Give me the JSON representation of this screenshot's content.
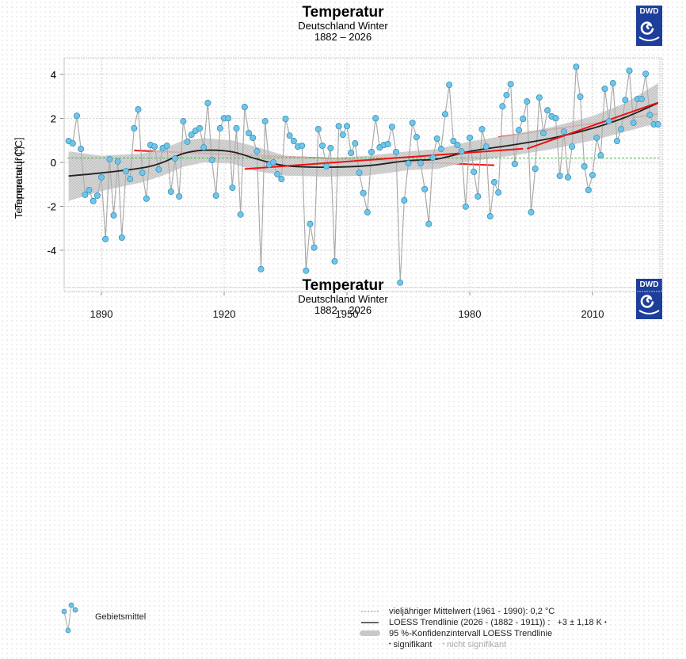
{
  "logo": {
    "text": "DWD"
  },
  "legend": {
    "gebietsmittel": "Gebietsmittel",
    "mean": "vieljähriger Mittelwert (1961 - 1990): 0,2 °C",
    "loess": "LOESS Trendlinie (2026 - (1882 - 1911)) :",
    "loess_value": "+3 ± 1,18 K",
    "ci": "95 %-Konfidenzintervall LOESS Trendlinie",
    "sig": "signifikant",
    "nonsig": "nicht signifikant"
  },
  "colors": {
    "point_fill": "#6ec6ea",
    "point_stroke": "#3a8fb5",
    "series_line": "#aaaaaa",
    "loess": "#222222",
    "band": "#c8c8c8",
    "trend": "#ee1111",
    "mean": "#44bb44",
    "logo": "#1d3e9a"
  },
  "chart_data": [
    {
      "type": "line",
      "title": "Temperatur",
      "subtitle": "Deutschland Winter",
      "period": "1882 – 2026",
      "xlabel": "",
      "ylabel": "Temperatur [°C]",
      "xlim": [
        1880,
        2028
      ],
      "ylim": [
        -5,
        4.8
      ],
      "yticks": [
        -4,
        -2,
        0,
        2,
        4
      ],
      "xticks": [],
      "grid": true,
      "mean_1961_1990": 0.2,
      "series_ref": "gebietsmittel",
      "trend_segments": [
        {
          "x": [
            1898,
            1986
          ],
          "y": [
            0.54,
            -0.13
          ]
        },
        {
          "x": [
            1987,
            2026
          ],
          "y": [
            1.15,
            2.2
          ]
        }
      ]
    },
    {
      "type": "line",
      "title": "Temperatur",
      "subtitle": "Deutschland Winter",
      "period": "1882 – 2026",
      "xlabel": "",
      "ylabel": "Temperatur [°C]",
      "xlim": [
        1880,
        2028
      ],
      "ylim": [
        -5.8,
        4.8
      ],
      "yticks": [
        -4,
        -2,
        0,
        2,
        4
      ],
      "xticks": [
        1890,
        1920,
        1950,
        1980,
        2010
      ],
      "grid": true,
      "mean_1961_1990": 0.2,
      "series_ref": "gebietsmittel",
      "trend_segments": [
        {
          "x": [
            1925,
            1993
          ],
          "y": [
            -0.3,
            0.62
          ]
        },
        {
          "x": [
            1994,
            2026
          ],
          "y": [
            0.62,
            2.72
          ]
        }
      ]
    }
  ],
  "gebietsmittel": {
    "start_year": 1882,
    "values": [
      0.97,
      0.86,
      2.12,
      0.61,
      -1.47,
      -1.26,
      -1.76,
      -1.51,
      -0.68,
      -3.49,
      0.14,
      -2.41,
      0.04,
      -3.42,
      -0.4,
      -0.76,
      1.55,
      2.41,
      -0.47,
      -1.65,
      0.79,
      0.72,
      -0.32,
      0.65,
      0.76,
      -1.33,
      0.18,
      -1.55,
      1.87,
      0.94,
      1.26,
      1.44,
      1.55,
      0.68,
      2.7,
      0.11,
      -1.51,
      1.55,
      2.01,
      2.01,
      -1.15,
      1.55,
      -2.37,
      2.52,
      1.33,
      1.12,
      0.5,
      -4.86,
      1.87,
      -0.11,
      0.0,
      -0.54,
      -0.76,
      1.98,
      1.22,
      0.97,
      0.72,
      0.76,
      -4.93,
      -2.8,
      -3.88,
      1.51,
      0.76,
      -0.18,
      0.65,
      -4.5,
      1.65,
      1.26,
      1.65,
      0.43,
      0.86,
      -0.47,
      -1.4,
      -2.27,
      0.47,
      2.01,
      0.68,
      0.79,
      0.83,
      1.62,
      0.47,
      -5.47,
      -1.73,
      -0.04,
      1.8,
      1.15,
      -0.04,
      -1.22,
      -2.8,
      0.22,
      1.08,
      0.61,
      2.19,
      3.53,
      0.97,
      0.79,
      0.5,
      -2.01,
      1.12,
      -0.43,
      -1.55,
      1.51,
      0.72,
      -2.45,
      -0.9,
      -1.37,
      2.55,
      3.06,
      3.56,
      -0.07,
      1.47,
      1.98,
      2.77,
      -2.27,
      -0.29,
      2.95,
      1.33,
      2.37,
      2.09,
      2.01,
      -0.61,
      1.4,
      -0.68,
      0.72,
      4.35,
      2.99,
      -0.18,
      -1.26,
      -0.58,
      1.12,
      0.32,
      3.35,
      1.87,
      3.6,
      0.97,
      1.51,
      2.84,
      4.17,
      1.8,
      2.88,
      2.88,
      4.03,
      2.16,
      1.73,
      1.73
    ]
  },
  "loess": {
    "x": [
      1882,
      1890,
      1900,
      1905,
      1910,
      1915,
      1922,
      1928,
      1935,
      1945,
      1955,
      1965,
      1972,
      1980,
      1990,
      2000,
      2010,
      2018,
      2026
    ],
    "y": [
      -0.62,
      -0.48,
      -0.25,
      0.0,
      0.4,
      0.55,
      0.48,
      0.15,
      -0.15,
      -0.22,
      -0.15,
      0.08,
      0.15,
      0.5,
      0.78,
      1.1,
      1.55,
      2.05,
      2.7
    ],
    "lo": [
      -1.75,
      -1.3,
      -0.9,
      -0.6,
      -0.2,
      0.0,
      -0.05,
      -0.4,
      -0.6,
      -0.65,
      -0.6,
      -0.35,
      -0.3,
      0.05,
      0.3,
      0.6,
      1.0,
      1.4,
      1.8
    ],
    "hi": [
      0.5,
      0.3,
      0.4,
      0.6,
      1.0,
      1.1,
      1.0,
      0.7,
      0.3,
      0.2,
      0.3,
      0.5,
      0.6,
      0.95,
      1.25,
      1.6,
      2.1,
      2.7,
      3.6
    ]
  }
}
